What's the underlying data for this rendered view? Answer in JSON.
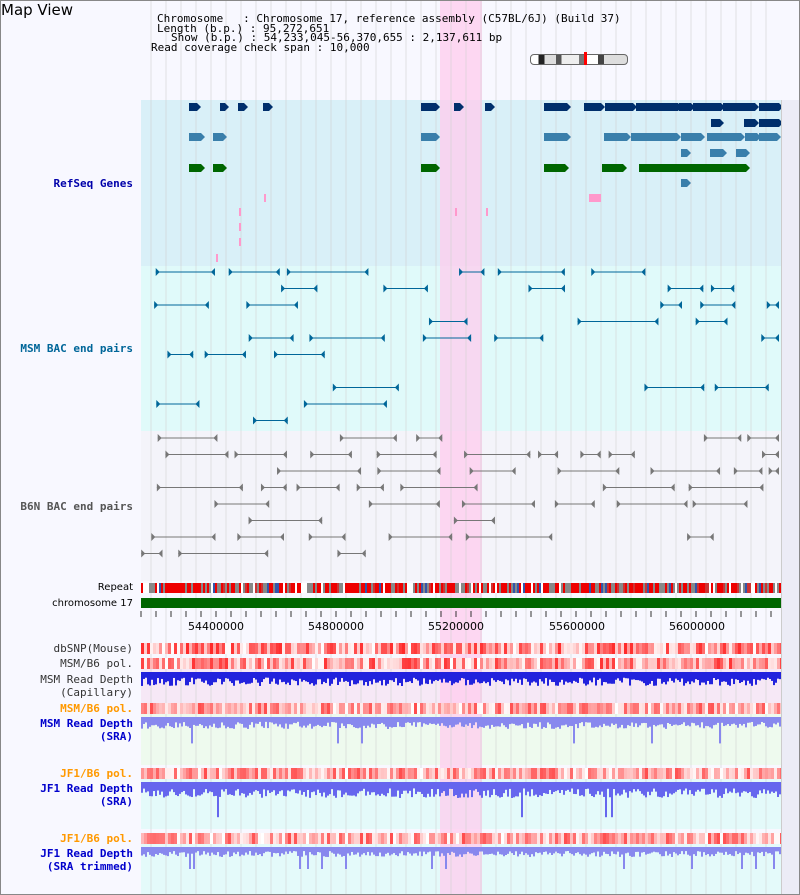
{
  "page": {
    "title": "Map View"
  },
  "info": {
    "chromosome_key": "Chromosome",
    "chromosome_value": "Chromosome 17, reference assembly (C57BL/6J) (Build 37)",
    "length_key": "Length (b.p.)",
    "length_value": "95,272,651",
    "show_key": "Show (b.p.)",
    "show_value": "54,233,045-56,370,655 : 2,137,611 bp",
    "coverage_key": "Read coverage check span",
    "coverage_value": "10,000"
  },
  "tracks": {
    "refseq": "RefSeq Genes",
    "msm_bac": "MSM BAC end pairs",
    "b6n_bac": "B6N BAC end pairs",
    "repeat": "Repeat",
    "chromosome": "chromosome 17",
    "dbsnp": "dbSNP(Mouse)",
    "msm_b6_pol": "MSM/B6 pol.",
    "msm_depth_cap_1": "MSM Read Depth",
    "msm_depth_cap_2": "(Capillary)",
    "msm_b6_pol_2": "MSM/B6 pol.",
    "msm_depth_sra_1": "MSM Read Depth",
    "msm_depth_sra_2": "(SRA)",
    "jf1_b6_pol": "JF1/B6 pol.",
    "jf1_depth_sra_1": "JF1 Read Depth",
    "jf1_depth_sra_2": "(SRA)",
    "jf1_b6_pol_2": "JF1/B6 pol.",
    "jf1_depth_trim_1": "JF1 Read Depth",
    "jf1_depth_trim_2": "(SRA trimmed)"
  },
  "axis_ticks": [
    "54400000",
    "54800000",
    "55200000",
    "55600000",
    "56000000"
  ],
  "colors": {
    "refseq_label": "#0000aa",
    "msm_bac_label": "#006699",
    "b6n_bac_label": "#555555",
    "orange_label": "#ff9900",
    "blue_label": "#0000cc",
    "highlight": "#ffccee"
  }
}
